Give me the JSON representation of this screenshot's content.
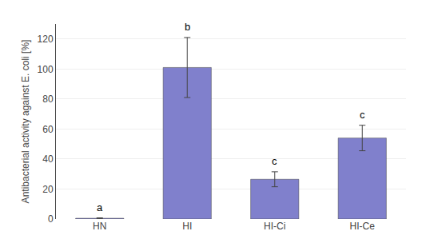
{
  "chart_data": {
    "type": "bar",
    "categories": [
      "HN",
      "HI",
      "HI-Ci",
      "HI-Ce"
    ],
    "values": [
      0.5,
      101.0,
      26.5,
      54.0
    ],
    "errors": [
      0.3,
      20.0,
      5.0,
      8.5
    ],
    "letters": [
      "a",
      "b",
      "c",
      "c"
    ],
    "ylabel": "Antibacterial activity against E. coli [%]",
    "color": "#8080CC",
    "ylim": [
      0,
      130
    ],
    "yticks": [
      0,
      20,
      40,
      60,
      80,
      100,
      120
    ],
    "grid": true
  }
}
